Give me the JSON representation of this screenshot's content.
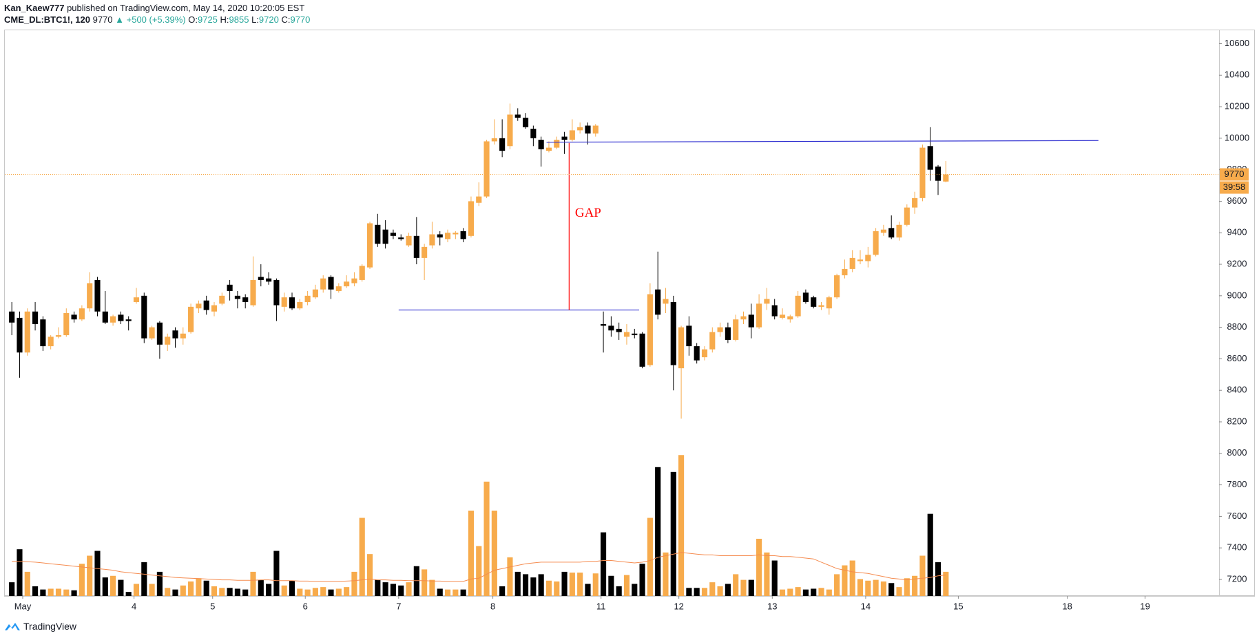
{
  "header": {
    "user": "Kan_Kaew777",
    "published": "published on TradingView.com, May 14, 2020 10:20:05 EST",
    "symbol": "CME_DL:BTC1!, 120",
    "change": "▲ +500 (+5.39%)",
    "o_label": "O:",
    "h_label": "H:",
    "l_label": "L:",
    "c_label": "C:"
  },
  "chart_data": {
    "type": "candlestick",
    "up_color": "#f7ab4c",
    "down_color": "#000000",
    "volume_ma_color": "#f58b4f",
    "open": [
      8900,
      8860,
      8640,
      8900,
      8850,
      8680,
      8740,
      8750,
      8880,
      8850,
      8920,
      9100,
      8900,
      8830,
      8880,
      8850,
      8960,
      9000,
      8730,
      8830,
      8690,
      8780,
      8730,
      8770,
      8920,
      8970,
      8900,
      8950,
      9070,
      9000,
      8990,
      8940,
      9120,
      9110,
      9100,
      8930,
      8990,
      8920,
      8960,
      8990,
      9040,
      9120,
      9030,
      9060,
      9080,
      9100,
      9180,
      9450,
      9420,
      9400,
      9370,
      9320,
      9380,
      9240,
      9320,
      9390,
      9360,
      9390,
      9410,
      9380,
      9590,
      9630,
      9980,
      10000,
      9950,
      10150,
      10130,
      10060,
      9990,
      9920,
      9940,
      10010,
      9990,
      10050,
      10080,
      10030,
      8820,
      8810,
      8790,
      8740,
      8760,
      8760,
      8560,
      9040,
      8950,
      8960,
      8540,
      8810,
      8680,
      8610,
      8660,
      8770,
      8800,
      8720,
      8850,
      8880,
      8800,
      8950,
      8940,
      8860,
      8850,
      8870,
      9020,
      8990,
      8930,
      8920,
      8990,
      9130,
      9170,
      9220,
      9220,
      9260,
      9400,
      9430,
      9370,
      9450,
      9560,
      9620,
      9950,
      9820,
      9725
    ],
    "high": [
      8960,
      8900,
      8920,
      8960,
      8870,
      8750,
      8800,
      8920,
      8900,
      8940,
      9150,
      9120,
      9030,
      8880,
      8900,
      8870,
      9050,
      9020,
      8810,
      8840,
      8760,
      8800,
      8800,
      8950,
      8970,
      9000,
      8960,
      9020,
      9100,
      9030,
      9010,
      9250,
      9200,
      9150,
      9110,
      9020,
      9020,
      8980,
      9030,
      9070,
      9130,
      9130,
      9080,
      9130,
      9150,
      9200,
      9470,
      9520,
      9480,
      9420,
      9390,
      9400,
      9500,
      9330,
      9470,
      9410,
      9420,
      9410,
      9430,
      9630,
      9720,
      9990,
      10120,
      10120,
      10220,
      10190,
      10160,
      10080,
      10010,
      9980,
      10010,
      10040,
      10120,
      10100,
      10100,
      10090,
      8900,
      8870,
      8830,
      8820,
      8790,
      8770,
      9080,
      9280,
      9050,
      9000,
      8810,
      8870,
      8700,
      8680,
      8800,
      8830,
      8830,
      8880,
      8900,
      8950,
      9010,
      9050,
      8980,
      8920,
      8880,
      9030,
      9040,
      9000,
      8960,
      9000,
      9140,
      9230,
      9290,
      9290,
      9310,
      9430,
      9450,
      9510,
      9470,
      9580,
      9660,
      9960,
      10070,
      9830,
      9855
    ],
    "low": [
      8750,
      8480,
      8620,
      8780,
      8650,
      8660,
      8730,
      8740,
      8830,
      8840,
      8900,
      8870,
      8820,
      8810,
      8820,
      8780,
      8950,
      8700,
      8720,
      8600,
      8650,
      8670,
      8690,
      8760,
      8890,
      8880,
      8870,
      8940,
      8970,
      8920,
      8920,
      8930,
      9060,
      9070,
      8840,
      8900,
      8910,
      8910,
      8940,
      8980,
      9020,
      8980,
      9020,
      9050,
      9060,
      9090,
      9170,
      9310,
      9300,
      9360,
      9350,
      9310,
      9200,
      9100,
      9300,
      9320,
      9340,
      9360,
      9340,
      9370,
      9570,
      9620,
      9960,
      9880,
      9930,
      10110,
      10060,
      9950,
      9820,
      9910,
      9930,
      9900,
      9980,
      10030,
      9960,
      10010,
      8640,
      8740,
      8720,
      8690,
      8730,
      8540,
      8550,
      8850,
      8890,
      8400,
      8220,
      8620,
      8570,
      8590,
      8640,
      8740,
      8700,
      8710,
      8820,
      8730,
      8790,
      8910,
      8850,
      8850,
      8830,
      8860,
      8950,
      8920,
      8910,
      8880,
      8980,
      9110,
      9150,
      9200,
      9180,
      9250,
      9380,
      9360,
      9350,
      9440,
      9520,
      9600,
      9730,
      9640,
      9720
    ],
    "close": [
      8830,
      8640,
      8900,
      8820,
      8680,
      8740,
      8750,
      8890,
      8850,
      8920,
      9080,
      8900,
      8830,
      8870,
      8840,
      8840,
      8990,
      8730,
      8800,
      8690,
      8740,
      8730,
      8760,
      8930,
      8950,
      8910,
      8940,
      9000,
      9030,
      8980,
      8960,
      9100,
      9100,
      9090,
      8940,
      8990,
      8920,
      8960,
      9000,
      9040,
      9110,
      9040,
      9060,
      9090,
      9110,
      9190,
      9460,
      9330,
      9330,
      9380,
      9360,
      9380,
      9240,
      9310,
      9390,
      9370,
      9400,
      9400,
      9360,
      9600,
      9630,
      9980,
      10000,
      9920,
      10150,
      10130,
      10070,
      10000,
      9930,
      9940,
      9990,
      9990,
      10050,
      10070,
      10030,
      10080,
      8810,
      8780,
      8770,
      8770,
      8750,
      8550,
      9010,
      8880,
      8980,
      8560,
      8800,
      8680,
      8590,
      8660,
      8770,
      8800,
      8720,
      8850,
      8870,
      8800,
      8950,
      8980,
      8870,
      8880,
      8870,
      9000,
      8960,
      8930,
      8940,
      8990,
      9130,
      9170,
      9240,
      9230,
      9260,
      9410,
      9420,
      9370,
      9450,
      9560,
      9620,
      9940,
      9800,
      9730,
      9770
    ],
    "volume": [
      170,
      580,
      300,
      120,
      80,
      90,
      90,
      80,
      70,
      400,
      500,
      560,
      230,
      250,
      200,
      50,
      150,
      420,
      150,
      300,
      100,
      80,
      130,
      180,
      220,
      190,
      120,
      100,
      100,
      90,
      80,
      300,
      200,
      150,
      560,
      130,
      190,
      90,
      80,
      100,
      110,
      80,
      90,
      110,
      300,
      970,
      520,
      200,
      170,
      150,
      130,
      170,
      370,
      330,
      200,
      90,
      80,
      80,
      80,
      1060,
      620,
      1420,
      1060,
      120,
      480,
      300,
      270,
      230,
      270,
      190,
      180,
      300,
      290,
      290,
      150,
      280,
      790,
      250,
      120,
      260,
      150,
      400,
      970,
      1600,
      540,
      1540,
      1750,
      100,
      100,
      100,
      170,
      120,
      150,
      270,
      200,
      200,
      710,
      540,
      440,
      80,
      90,
      110,
      80,
      90,
      100,
      80,
      270,
      380,
      440,
      210,
      190,
      200,
      180,
      160,
      110,
      220,
      250,
      500,
      1020,
      420,
      300
    ],
    "volume_ma": [
      430,
      430,
      425,
      420,
      410,
      400,
      390,
      380,
      370,
      360,
      350,
      340,
      330,
      320,
      300,
      290,
      280,
      270,
      260,
      250,
      240,
      230,
      225,
      220,
      215,
      210,
      205,
      200,
      200,
      195,
      195,
      195,
      200,
      200,
      190,
      190,
      190,
      185,
      185,
      180,
      180,
      180,
      180,
      185,
      190,
      200,
      210,
      200,
      200,
      195,
      195,
      190,
      190,
      190,
      185,
      185,
      180,
      180,
      180,
      210,
      220,
      270,
      320,
      340,
      360,
      380,
      400,
      410,
      420,
      420,
      420,
      420,
      420,
      420,
      430,
      430,
      440,
      440,
      430,
      420,
      410,
      420,
      440,
      480,
      500,
      520,
      540,
      530,
      520,
      510,
      510,
      500,
      500,
      500,
      500,
      500,
      510,
      500,
      500,
      490,
      490,
      480,
      470,
      460,
      420,
      380,
      340,
      320,
      300,
      290,
      280,
      260,
      240,
      220,
      210,
      200,
      210,
      220,
      230,
      250,
      260
    ],
    "xlim": [
      -0.9,
      155.1
    ],
    "ylim": [
      7095,
      10685
    ],
    "xticks": [
      {
        "value": 1.4,
        "label": "May"
      },
      {
        "value": 15.7,
        "label": "4"
      },
      {
        "value": 25.8,
        "label": "5"
      },
      {
        "value": 37.7,
        "label": "6"
      },
      {
        "value": 49.7,
        "label": "7"
      },
      {
        "value": 61.8,
        "label": "8"
      },
      {
        "value": 75.7,
        "label": "11"
      },
      {
        "value": 85.7,
        "label": "12"
      },
      {
        "value": 97.7,
        "label": "13"
      },
      {
        "value": 109.7,
        "label": "14"
      },
      {
        "value": 121.6,
        "label": "15"
      },
      {
        "value": 135.6,
        "label": "18"
      },
      {
        "value": 145.6,
        "label": "19"
      }
    ],
    "yticks": [
      7200,
      7400,
      7600,
      7800,
      8000,
      8200,
      8400,
      8600,
      8800,
      9000,
      9200,
      9400,
      9600,
      9800,
      10000,
      10200,
      10400,
      10600
    ],
    "drawings": [
      {
        "kind": "line",
        "color": "#2f2fd0",
        "x": [
          68.7,
          139.6
        ],
        "y": [
          9975,
          9985
        ]
      },
      {
        "kind": "line",
        "color": "#2f2fd0",
        "x": [
          49.7,
          80.6
        ],
        "y": [
          8910,
          8910
        ]
      },
      {
        "kind": "line",
        "color": "#ff0000",
        "x": [
          71.6,
          71.6
        ],
        "y": [
          9970,
          8910
        ]
      }
    ],
    "annotation": {
      "text": "GAP",
      "x": 72.0,
      "y": 9520,
      "color": "#ff0000"
    },
    "countdown": "39:58"
  },
  "footer": {
    "brand": "TradingView"
  }
}
